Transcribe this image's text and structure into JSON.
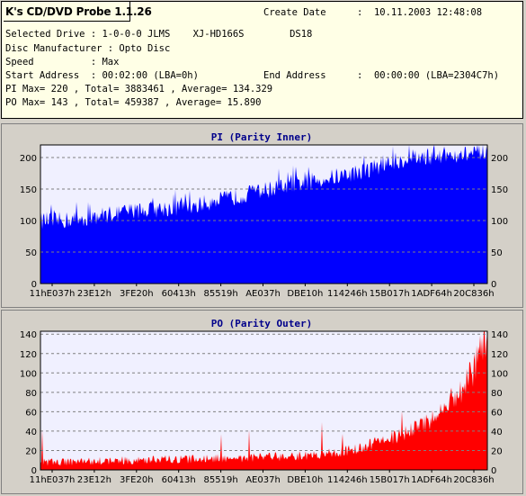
{
  "info": {
    "app_title": "K's CD/DVD Probe 1.1.26",
    "create_date_label": "Create Date",
    "create_date_value": ":  10.11.2003 12:48:08",
    "selected_drive": "Selected Drive : 1-0-0-0 JLMS    XJ-HD166S        DS18",
    "disc_manufacturer": "Disc Manufacturer : Opto Disc",
    "speed": "Speed          : Max",
    "start_address": "Start Address  : 00:02:00 (LBA=0h)",
    "end_address_label": "End Address",
    "end_address_value": ":  00:00:00 (LBA=2304C7h)",
    "pi_summary": "PI Max= 220 , Total= 3883461 , Average= 134.329",
    "po_summary": "PO Max= 143 , Total= 459387 , Average= 15.890"
  },
  "chart_data": [
    {
      "type": "area",
      "title": "PI (Parity Inner)",
      "color": "#0000ff",
      "xticks": [
        "11hE037h",
        "23E12h",
        "3FE20h",
        "60413h",
        "85519h",
        "AE037h",
        "DBE10h",
        "114246h",
        "15B017h",
        "1ADF64h",
        "20C836h"
      ],
      "yticks": [
        0,
        50,
        100,
        150,
        200
      ],
      "ylim": [
        0,
        220
      ],
      "grid": true,
      "x": [
        0,
        0.05,
        0.1,
        0.15,
        0.2,
        0.25,
        0.3,
        0.35,
        0.4,
        0.45,
        0.5,
        0.55,
        0.6,
        0.65,
        0.7,
        0.75,
        0.8,
        0.85,
        0.9,
        0.95,
        1.0
      ],
      "values": [
        100,
        100,
        104,
        110,
        115,
        118,
        120,
        125,
        132,
        140,
        148,
        155,
        162,
        168,
        175,
        185,
        195,
        200,
        204,
        205,
        206
      ]
    },
    {
      "type": "area",
      "title": "PO (Parity Outer)",
      "color": "#ff0000",
      "xticks": [
        "11hE037h",
        "23E12h",
        "3FE20h",
        "60413h",
        "85519h",
        "AE037h",
        "DBE10h",
        "114246h",
        "15B017h",
        "1ADF64h",
        "20C836h"
      ],
      "yticks": [
        0,
        20,
        40,
        60,
        80,
        100,
        120,
        140
      ],
      "ylim": [
        0,
        143
      ],
      "grid": true,
      "x": [
        0,
        0.1,
        0.2,
        0.3,
        0.4,
        0.5,
        0.55,
        0.6,
        0.65,
        0.7,
        0.75,
        0.8,
        0.85,
        0.88,
        0.9,
        0.92,
        0.94,
        0.96,
        0.98,
        1.0
      ],
      "values": [
        7,
        8,
        9,
        10,
        11,
        12,
        13,
        14,
        16,
        20,
        26,
        34,
        44,
        52,
        60,
        70,
        80,
        92,
        110,
        138
      ]
    }
  ]
}
